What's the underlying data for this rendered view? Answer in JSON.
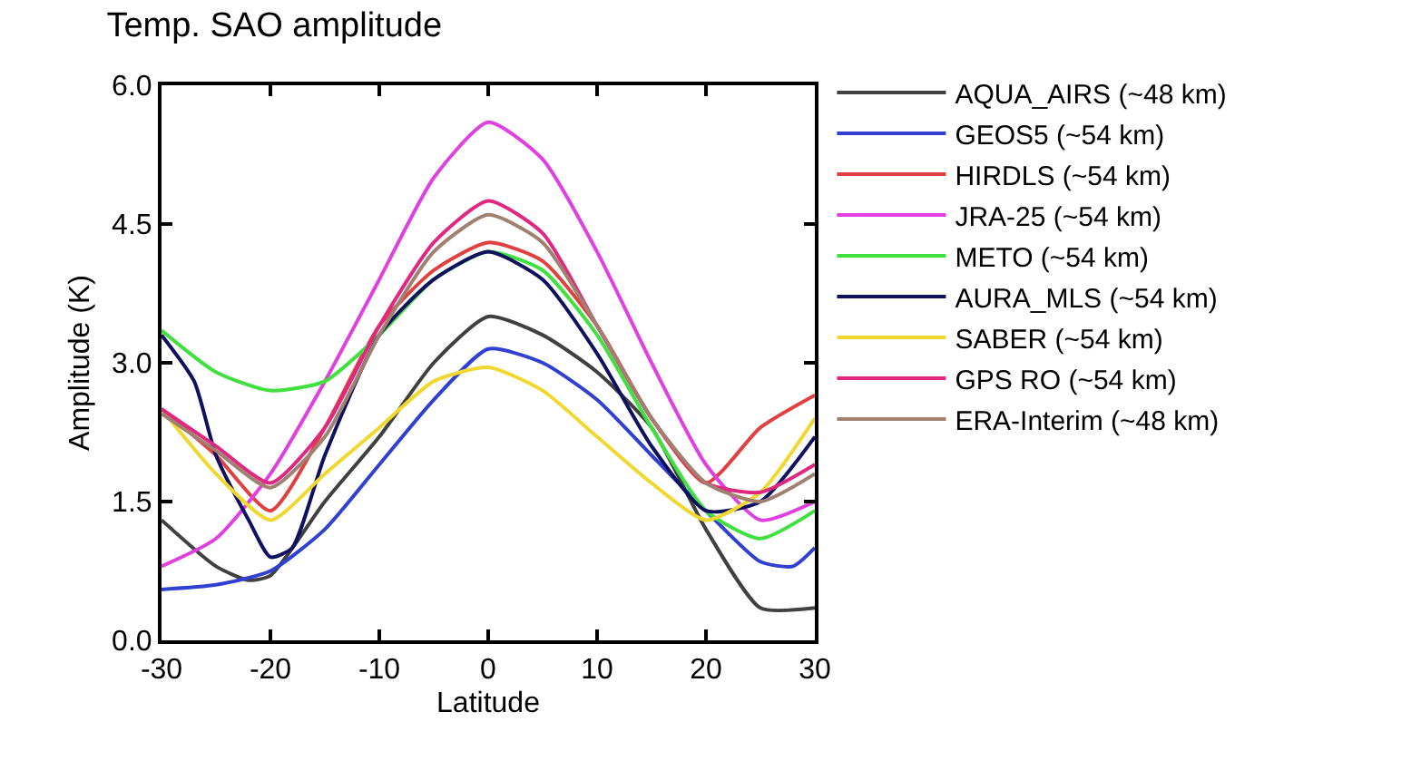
{
  "chart_data": {
    "type": "line",
    "title": "Temp. SAO amplitude",
    "xlabel": "Latitude",
    "ylabel": "Amplitude (K)",
    "x": [
      -30,
      -25,
      -20,
      -15,
      -10,
      -5,
      0,
      5,
      10,
      15,
      20,
      25,
      30
    ],
    "xlim": [
      -30,
      30
    ],
    "xticks": [
      -30,
      -20,
      -10,
      0,
      10,
      20,
      30
    ],
    "ylim": [
      0,
      6
    ],
    "yticks": [
      {
        "value": 0,
        "label": "0.0"
      },
      {
        "value": 1.5,
        "label": "1.5"
      },
      {
        "value": 3,
        "label": "3.0"
      },
      {
        "value": 4.5,
        "label": "4.5"
      },
      {
        "value": 6,
        "label": "6.0"
      }
    ],
    "grid": false,
    "legend": "right",
    "marker": "none",
    "line_style": "solid",
    "series": [
      {
        "name": "AQUA_AIRS (~48 km)",
        "color": "#404040",
        "x": [
          -30,
          -25,
          -22,
          -20,
          -15,
          -10,
          -5,
          0,
          5,
          10,
          15,
          20,
          25,
          30
        ],
        "values": [
          1.3,
          0.8,
          0.65,
          0.7,
          1.5,
          2.2,
          3.0,
          3.5,
          3.3,
          2.9,
          2.3,
          1.2,
          0.35,
          0.35
        ]
      },
      {
        "name": "GEOS5 (~54 km)",
        "color": "#3040d0",
        "x": [
          -30,
          -25,
          -20,
          -15,
          -10,
          -5,
          0,
          5,
          10,
          15,
          20,
          25,
          28,
          30
        ],
        "values": [
          0.55,
          0.6,
          0.75,
          1.2,
          1.9,
          2.6,
          3.15,
          3.0,
          2.6,
          2.0,
          1.4,
          0.85,
          0.8,
          1.0
        ]
      },
      {
        "name": "HIRDLS (~54 km)",
        "color": "#e04040",
        "values": [
          2.5,
          2.0,
          1.4,
          2.3,
          3.4,
          4.0,
          4.3,
          4.1,
          3.4,
          2.4,
          1.7,
          2.3,
          2.65
        ]
      },
      {
        "name": "JRA-25 (~54 km)",
        "color": "#e040e0",
        "values": [
          0.8,
          1.1,
          1.8,
          2.8,
          3.9,
          5.0,
          5.6,
          5.2,
          4.2,
          3.0,
          1.9,
          1.3,
          1.5
        ]
      },
      {
        "name": "METO (~54 km)",
        "color": "#40e040",
        "values": [
          3.35,
          2.9,
          2.7,
          2.8,
          3.3,
          3.9,
          4.2,
          4.0,
          3.3,
          2.3,
          1.4,
          1.1,
          1.4
        ]
      },
      {
        "name": "AURA_MLS (~54 km)",
        "color": "#101060",
        "x": [
          -30,
          -27,
          -25,
          -22,
          -20,
          -18,
          -15,
          -10,
          -5,
          0,
          5,
          10,
          15,
          20,
          25,
          30
        ],
        "values": [
          3.3,
          2.8,
          2.0,
          1.3,
          0.9,
          1.0,
          2.0,
          3.3,
          3.9,
          4.2,
          3.9,
          3.1,
          2.1,
          1.4,
          1.5,
          2.2
        ]
      },
      {
        "name": "SABER (~54 km)",
        "color": "#f0d830",
        "values": [
          2.5,
          1.8,
          1.3,
          1.8,
          2.3,
          2.8,
          2.95,
          2.7,
          2.2,
          1.7,
          1.3,
          1.6,
          2.4
        ]
      },
      {
        "name": "GPS RO (~54 km)",
        "color": "#e02880",
        "values": [
          2.5,
          2.1,
          1.7,
          2.3,
          3.4,
          4.3,
          4.75,
          4.4,
          3.4,
          2.4,
          1.7,
          1.6,
          1.9
        ]
      },
      {
        "name": "ERA-Interim (~48 km)",
        "color": "#a08070",
        "values": [
          2.45,
          2.05,
          1.65,
          2.2,
          3.3,
          4.2,
          4.6,
          4.3,
          3.4,
          2.4,
          1.7,
          1.5,
          1.8
        ]
      }
    ]
  }
}
